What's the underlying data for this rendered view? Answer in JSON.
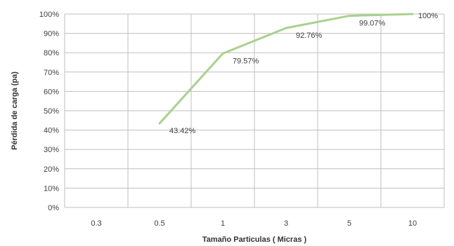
{
  "chart_data": {
    "type": "line",
    "categories": [
      "0.3",
      "0.5",
      "1",
      "3",
      "5",
      "10"
    ],
    "series": [
      {
        "values": [
          null,
          43.42,
          79.57,
          92.76,
          99.07,
          100
        ],
        "labels": [
          "",
          "43.42%",
          "79.57%",
          "92.76%",
          "99.07%",
          "100%"
        ],
        "color": "#a9d18e"
      }
    ],
    "xlabel": "Tamaño Particulas ( Micras )",
    "ylabel": "Pérdida de carga (pa)",
    "ylim": [
      0,
      100
    ],
    "yticks": [
      "0%",
      "10%",
      "20%",
      "30%",
      "40%",
      "50%",
      "60%",
      "70%",
      "80%",
      "90%",
      "100%"
    ],
    "grid": true,
    "legend": "none",
    "gridColor": "#bfbfbf"
  }
}
